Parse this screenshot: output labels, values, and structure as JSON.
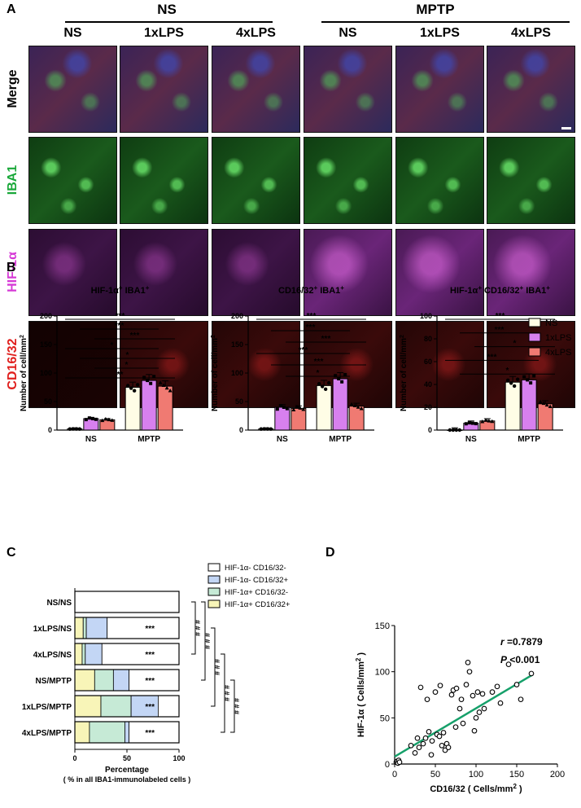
{
  "panelA": {
    "letter": "A",
    "groups": [
      "NS",
      "MPTP"
    ],
    "columns": [
      "NS",
      "1xLPS",
      "4xLPS",
      "NS",
      "1xLPS",
      "4xLPS"
    ],
    "rows": [
      {
        "label": "Merge",
        "color": "#000000"
      },
      {
        "label": "IBA1",
        "color": "#1aa83a"
      },
      {
        "label": "HIF-1α",
        "color": "#d63ad6"
      },
      {
        "label": "CD16/32",
        "color": "#e0201e"
      }
    ]
  },
  "panelB": {
    "letter": "B",
    "legend": [
      {
        "name": "NS",
        "color": "#fffde6"
      },
      {
        "name": "1xLPS",
        "color": "#d780ee"
      },
      {
        "name": "4xLPS",
        "color": "#f07a72"
      }
    ],
    "charts": [
      {
        "title_main": "HIF-1α",
        "title_sup1": "+",
        "title_mid": " IBA1",
        "title_sup2": "+",
        "title_tail": "",
        "title_sup3": "",
        "ylabel": "Number of cell/mm",
        "ylabel_sup": "2",
        "ylim": [
          0,
          200
        ],
        "yticks": [
          "0",
          "50",
          "100",
          "150",
          "200"
        ],
        "groups": [
          "NS",
          "MPTP"
        ],
        "series_values": [
          [
            2,
            20,
            18
          ],
          [
            75,
            87,
            77
          ]
        ],
        "sig": [
          "***",
          "***",
          "***",
          "*",
          "*",
          "*",
          "**"
        ]
      },
      {
        "title_main": "CD16/32",
        "title_sup1": "+",
        "title_mid": " IBA1",
        "title_sup2": "+",
        "title_tail": "",
        "title_sup3": "",
        "ylabel": "Number of cell/mm",
        "ylabel_sup": "2",
        "ylim": [
          0,
          200
        ],
        "yticks": [
          "0",
          "50",
          "100",
          "150",
          "200"
        ],
        "groups": [
          "NS",
          "MPTP"
        ],
        "series_values": [
          [
            2,
            40,
            38
          ],
          [
            78,
            90,
            42
          ]
        ],
        "sig": [
          "***",
          "***",
          "***",
          "***",
          "***",
          "*"
        ]
      },
      {
        "title_main": "HIF-1α",
        "title_sup1": "+",
        "title_mid": " CD16/32",
        "title_sup2": "+",
        "title_tail": " IBA1",
        "title_sup3": "+",
        "ylabel": "Number of cell/mm",
        "ylabel_sup": "2",
        "ylim": [
          0,
          100
        ],
        "yticks": [
          "0",
          "20",
          "40",
          "60",
          "80",
          "100"
        ],
        "groups": [
          "NS",
          "MPTP"
        ],
        "series_values": [
          [
            0,
            6,
            8
          ],
          [
            42,
            44,
            23
          ]
        ],
        "sig": [
          "***",
          "***",
          "*",
          "***",
          "*"
        ]
      }
    ]
  },
  "panelC": {
    "letter": "C",
    "categories": [
      "NS/NS",
      "1xLPS/NS",
      "4xLPS/NS",
      "NS/MPTP",
      "1xLPS/MPTP",
      "4xLPS/MPTP"
    ],
    "legend": [
      {
        "name": "HIF-1α- CD16/32-",
        "color": "#ffffff"
      },
      {
        "name": "HIF-1α- CD16/32+",
        "color": "#c3d6f5"
      },
      {
        "name": "HIF-1α+ CD16/32-",
        "color": "#c6ead6"
      },
      {
        "name": "HIF-1α+ CD16/32+",
        "color": "#f8f5b8"
      }
    ],
    "stacks": [
      [
        100,
        0,
        0,
        0
      ],
      [
        69,
        20,
        3,
        8
      ],
      [
        74,
        16,
        3,
        7
      ],
      [
        48,
        15,
        18,
        19
      ],
      [
        20,
        26,
        29,
        25
      ],
      [
        48,
        4,
        34,
        14
      ]
    ],
    "sig_inside": [
      "",
      "***",
      "***",
      "***",
      "***",
      "***"
    ],
    "xticks": [
      "0",
      "50",
      "100"
    ],
    "xlabel": "Percentage",
    "xlabel_sub": "( % in all IBA1-immunolabeled cells )",
    "brackets": [
      "# # #",
      "# # #",
      "# # #",
      "# # #",
      "# # #"
    ]
  },
  "panelD": {
    "letter": "D",
    "ylabel": "HIF-1α ( Cells/mm",
    "ylabel_sup": "2",
    "ylabel_end": " )",
    "xlabel": "CD16/32 ( Cells/mm",
    "xlabel_sup": "2",
    "xlabel_end": " )",
    "xticks": [
      "0",
      "50",
      "100",
      "150",
      "200"
    ],
    "yticks": [
      "0",
      "50",
      "100",
      "150"
    ],
    "r_label": "r",
    "r_value": " =0.7879",
    "p_label": "P",
    "p_value": " <0.001",
    "line_color": "#16a06a"
  },
  "chart_data": [
    {
      "type": "bar",
      "title": "HIF-1α+ IBA1+",
      "ylabel": "Number of cell/mm2",
      "categories": [
        "NS",
        "MPTP"
      ],
      "series": [
        {
          "name": "NS",
          "values": [
            2,
            75
          ]
        },
        {
          "name": "1xLPS",
          "values": [
            20,
            87
          ]
        },
        {
          "name": "4xLPS",
          "values": [
            18,
            77
          ]
        }
      ],
      "ylim": [
        0,
        200
      ]
    },
    {
      "type": "bar",
      "title": "CD16/32+ IBA1+",
      "ylabel": "Number of cell/mm2",
      "categories": [
        "NS",
        "MPTP"
      ],
      "series": [
        {
          "name": "NS",
          "values": [
            2,
            78
          ]
        },
        {
          "name": "1xLPS",
          "values": [
            40,
            90
          ]
        },
        {
          "name": "4xLPS",
          "values": [
            38,
            42
          ]
        }
      ],
      "ylim": [
        0,
        200
      ]
    },
    {
      "type": "bar",
      "title": "HIF-1α+ CD16/32+ IBA1+",
      "ylabel": "Number of cell/mm2",
      "categories": [
        "NS",
        "MPTP"
      ],
      "series": [
        {
          "name": "NS",
          "values": [
            0,
            42
          ]
        },
        {
          "name": "1xLPS",
          "values": [
            6,
            44
          ]
        },
        {
          "name": "4xLPS",
          "values": [
            8,
            23
          ]
        }
      ],
      "ylim": [
        0,
        100
      ]
    },
    {
      "type": "bar",
      "title": "",
      "xlabel": "Percentage ( % in all IBA1-immunolabeled cells )",
      "categories": [
        "NS/NS",
        "1xLPS/NS",
        "4xLPS/NS",
        "NS/MPTP",
        "1xLPS/MPTP",
        "4xLPS/MPTP"
      ],
      "series": [
        {
          "name": "HIF-1α+ CD16/32+",
          "values": [
            0,
            8,
            7,
            19,
            25,
            14
          ]
        },
        {
          "name": "HIF-1α+ CD16/32-",
          "values": [
            0,
            3,
            3,
            18,
            29,
            34
          ]
        },
        {
          "name": "HIF-1α- CD16/32+",
          "values": [
            0,
            20,
            16,
            15,
            26,
            4
          ]
        },
        {
          "name": "HIF-1α- CD16/32-",
          "values": [
            100,
            69,
            74,
            48,
            20,
            48
          ]
        }
      ],
      "xlim": [
        0,
        100
      ]
    },
    {
      "type": "scatter",
      "xlabel": "CD16/32 ( Cells/mm2 )",
      "ylabel": "HIF-1α ( Cells/mm2 )",
      "xlim": [
        0,
        200
      ],
      "ylim": [
        0,
        150
      ],
      "points": [
        [
          2,
          2
        ],
        [
          3,
          3
        ],
        [
          4,
          1
        ],
        [
          5,
          4
        ],
        [
          6,
          2
        ],
        [
          20,
          20
        ],
        [
          25,
          12
        ],
        [
          28,
          28
        ],
        [
          30,
          18
        ],
        [
          32,
          83
        ],
        [
          35,
          22
        ],
        [
          38,
          28
        ],
        [
          40,
          70
        ],
        [
          42,
          35
        ],
        [
          45,
          10
        ],
        [
          46,
          25
        ],
        [
          50,
          78
        ],
        [
          52,
          32
        ],
        [
          55,
          30
        ],
        [
          56,
          85
        ],
        [
          58,
          20
        ],
        [
          60,
          34
        ],
        [
          62,
          15
        ],
        [
          64,
          22
        ],
        [
          66,
          18
        ],
        [
          70,
          75
        ],
        [
          72,
          80
        ],
        [
          75,
          40
        ],
        [
          76,
          82
        ],
        [
          80,
          60
        ],
        [
          82,
          70
        ],
        [
          84,
          44
        ],
        [
          88,
          86
        ],
        [
          90,
          110
        ],
        [
          92,
          100
        ],
        [
          96,
          74
        ],
        [
          98,
          36
        ],
        [
          100,
          50
        ],
        [
          102,
          78
        ],
        [
          104,
          56
        ],
        [
          108,
          76
        ],
        [
          110,
          60
        ],
        [
          120,
          78
        ],
        [
          126,
          84
        ],
        [
          130,
          66
        ],
        [
          140,
          108
        ],
        [
          150,
          86
        ],
        [
          155,
          70
        ],
        [
          168,
          98
        ]
      ],
      "fit_line": [
        [
          0,
          8
        ],
        [
          170,
          97
        ]
      ]
    }
  ]
}
